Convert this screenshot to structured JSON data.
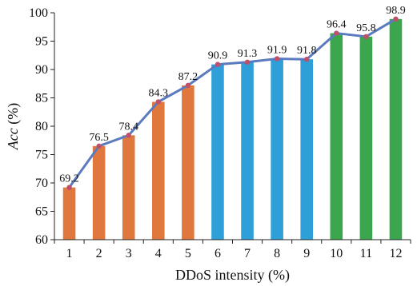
{
  "chart_data": {
    "type": "bar",
    "categories": [
      "1",
      "2",
      "3",
      "4",
      "5",
      "6",
      "7",
      "8",
      "9",
      "10",
      "11",
      "12"
    ],
    "values": [
      69.2,
      76.5,
      78.4,
      84.3,
      87.2,
      90.9,
      91.3,
      91.9,
      91.8,
      96.4,
      95.8,
      98.9
    ],
    "data_labels": [
      "69.2",
      "76.5",
      "78.4",
      "84.3",
      "87.2",
      "90.9",
      "91.3",
      "91.9",
      "91.8",
      "96.4",
      "95.8",
      "98.9"
    ],
    "bar_colors": [
      "#e0783e",
      "#e0783e",
      "#e0783e",
      "#e0783e",
      "#e0783e",
      "#2e9fd8",
      "#2e9fd8",
      "#2e9fd8",
      "#2e9fd8",
      "#3ca64e",
      "#3ca64e",
      "#3ca64e"
    ],
    "overlay_line": true,
    "line_color": "#5a7bbf",
    "marker_color": "#c0506a",
    "xlabel": "DDoS intensity (%)",
    "ylabel_italic": "Acc",
    "ylabel_unit": " (%)",
    "ylim": [
      60,
      100
    ],
    "yticks": [
      "60",
      "65",
      "70",
      "75",
      "80",
      "85",
      "90",
      "95",
      "100"
    ],
    "grid": false
  }
}
